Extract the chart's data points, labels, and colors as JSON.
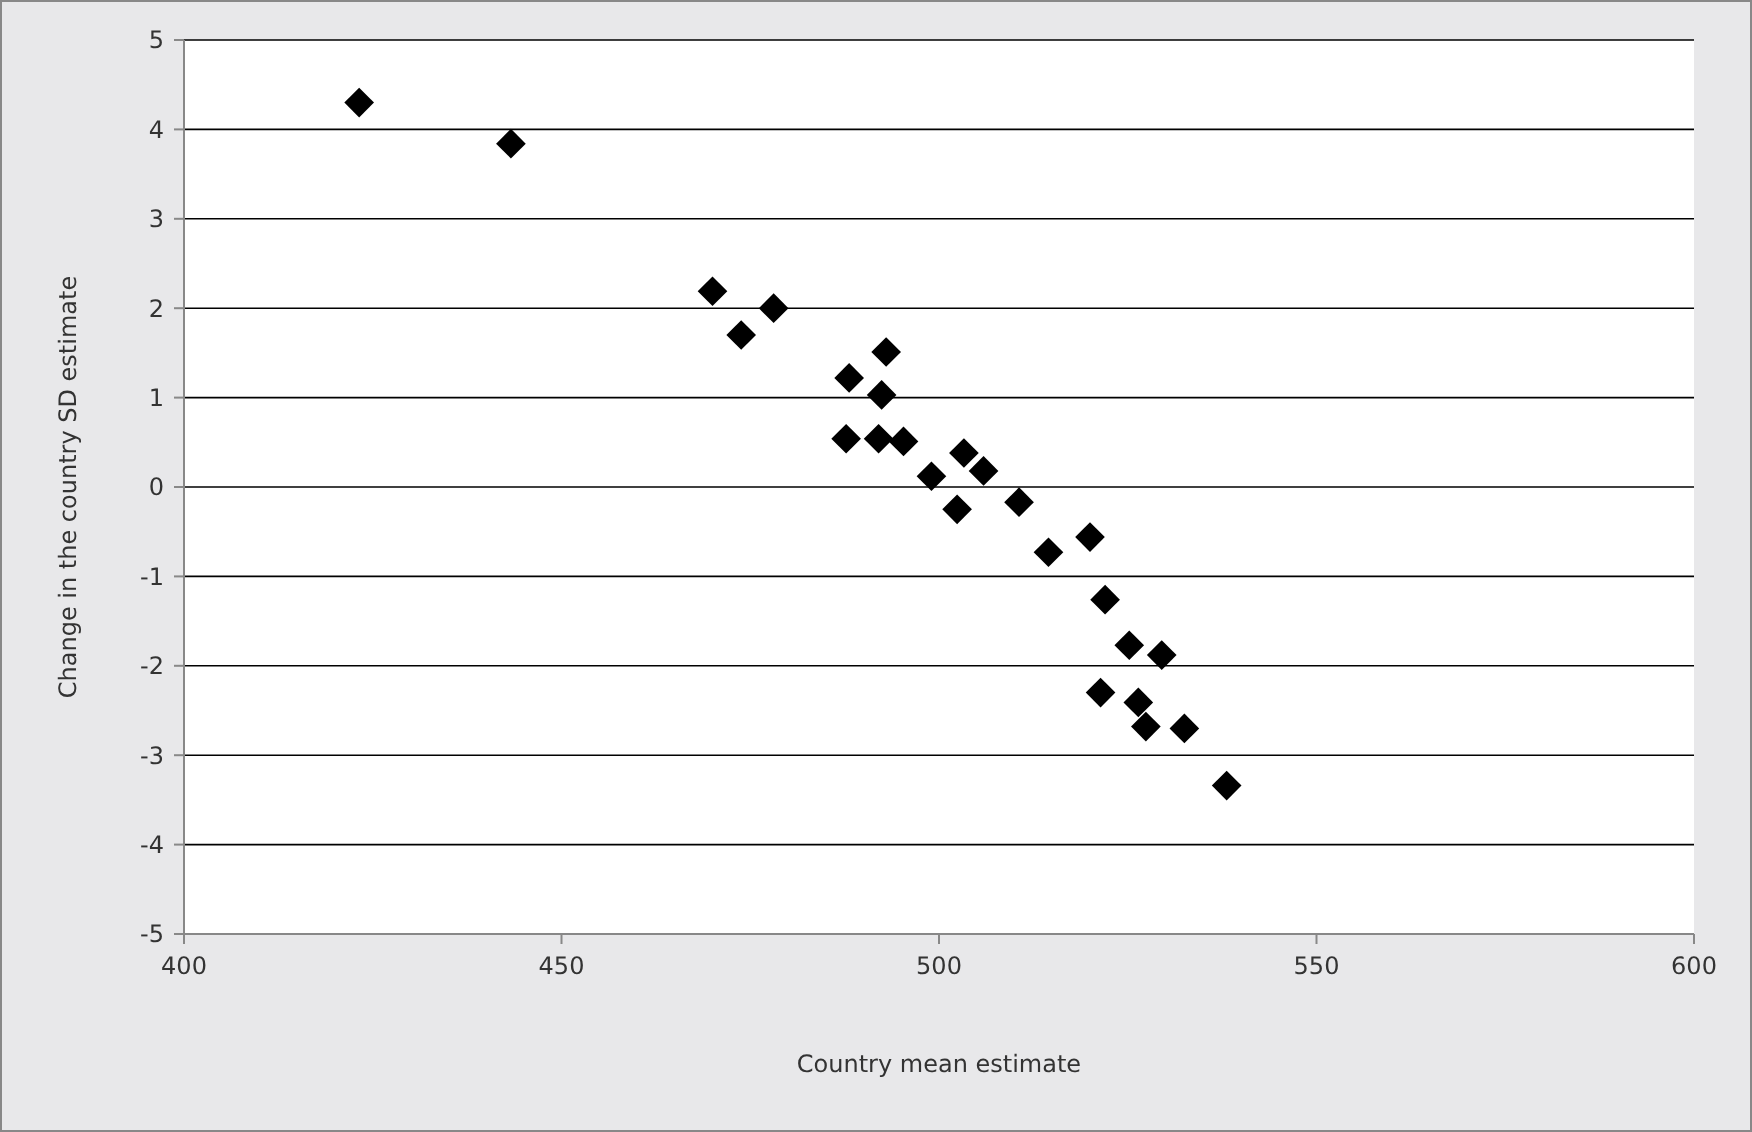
{
  "chart_data": {
    "type": "scatter",
    "xlabel": "Country mean estimate",
    "ylabel": "Change in the country SD estimate",
    "x": [
      423.2,
      443.3,
      470.0,
      473.8,
      478.1,
      493.0,
      488.1,
      492.4,
      487.7,
      492.0,
      495.3,
      503.3,
      505.9,
      499.0,
      502.4,
      510.6,
      520.0,
      514.5,
      522.0,
      525.2,
      529.5,
      521.4,
      526.4,
      527.4,
      532.5,
      538.1
    ],
    "values": [
      4.3,
      3.84,
      2.19,
      1.7,
      2.0,
      1.51,
      1.22,
      1.03,
      0.54,
      0.54,
      0.51,
      0.38,
      0.18,
      0.12,
      -0.25,
      -0.17,
      -0.56,
      -0.73,
      -1.26,
      -1.77,
      -1.88,
      -2.3,
      -2.41,
      -2.68,
      -2.7,
      -3.34
    ],
    "color": "#000000",
    "marker": "diamond",
    "xlim": [
      400,
      600
    ],
    "xticks": [
      400,
      450,
      500,
      550,
      600
    ],
    "ylim": [
      -5,
      5
    ],
    "yticks": [
      -5,
      -4,
      -3,
      -2,
      -1,
      0,
      1,
      2,
      3,
      4,
      5
    ],
    "grid": "y"
  }
}
